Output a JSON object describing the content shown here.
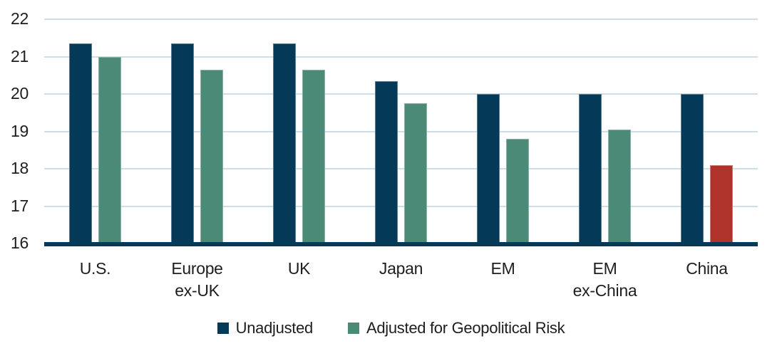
{
  "chart_data": {
    "type": "bar",
    "title": "",
    "xlabel": "",
    "ylabel": "",
    "categories": [
      "U.S.",
      "Europe\nex-UK",
      "UK",
      "Japan",
      "EM",
      "EM\nex-China",
      "China"
    ],
    "series": [
      {
        "name": "Unadjusted",
        "color": "#043a57",
        "values": [
          21.35,
          21.35,
          21.35,
          20.35,
          20.0,
          20.0,
          20.0
        ]
      },
      {
        "name": "Adjusted for Geopolitical Risk",
        "color": "#4a8a76",
        "values": [
          21.0,
          20.65,
          20.65,
          19.75,
          18.8,
          19.05,
          18.1
        ],
        "bar_colors": [
          "#4a8a76",
          "#4a8a76",
          "#4a8a76",
          "#4a8a76",
          "#4a8a76",
          "#4a8a76",
          "#b0332b"
        ]
      }
    ],
    "ylim": [
      16,
      22
    ],
    "yticks": [
      16,
      17,
      18,
      19,
      20,
      21,
      22
    ],
    "grid": true,
    "legend_position": "bottom",
    "styles": {
      "gridline_color": "#cddeea",
      "axis_color": "#043a57",
      "text_color": "#1e1e1e",
      "background": "#ffffff"
    }
  }
}
